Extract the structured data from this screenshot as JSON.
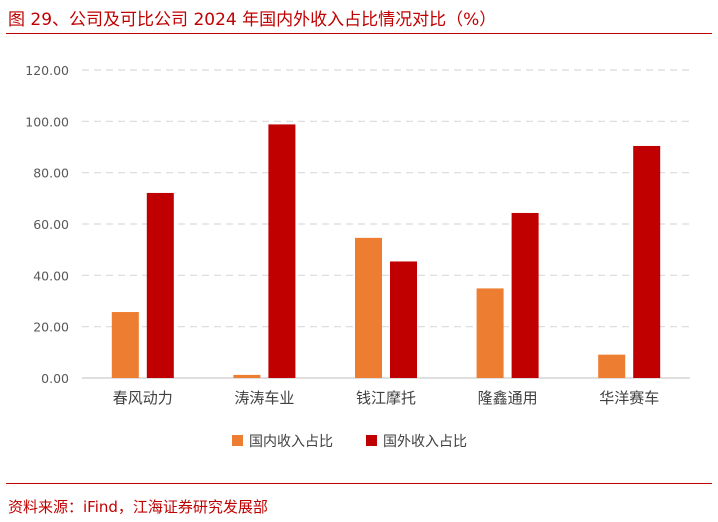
{
  "header": {
    "title": "图 29、公司及可比公司 2024 年国内外收入占比情况对比（%）"
  },
  "footer": {
    "source": "资料来源：iFind，江海证券研究发展部"
  },
  "colors": {
    "accent": "#c00000",
    "domestic": "#ed7d31",
    "overseas": "#c00000"
  },
  "chart_data": {
    "type": "bar",
    "categories": [
      "春风动力",
      "涛涛车业",
      "钱江摩托",
      "隆鑫通用",
      "华洋赛车"
    ],
    "series": [
      {
        "name": "国内收入占比",
        "values": [
          25.7,
          1.2,
          54.6,
          34.9,
          9.1
        ]
      },
      {
        "name": "国外收入占比",
        "values": [
          72.1,
          98.8,
          45.4,
          64.3,
          90.4
        ]
      }
    ],
    "yticks": [
      "0.00",
      "20.00",
      "40.00",
      "60.00",
      "80.00",
      "100.00",
      "120.00"
    ],
    "ylim": [
      0,
      120
    ],
    "grid": true,
    "legend": "bottom-center"
  }
}
